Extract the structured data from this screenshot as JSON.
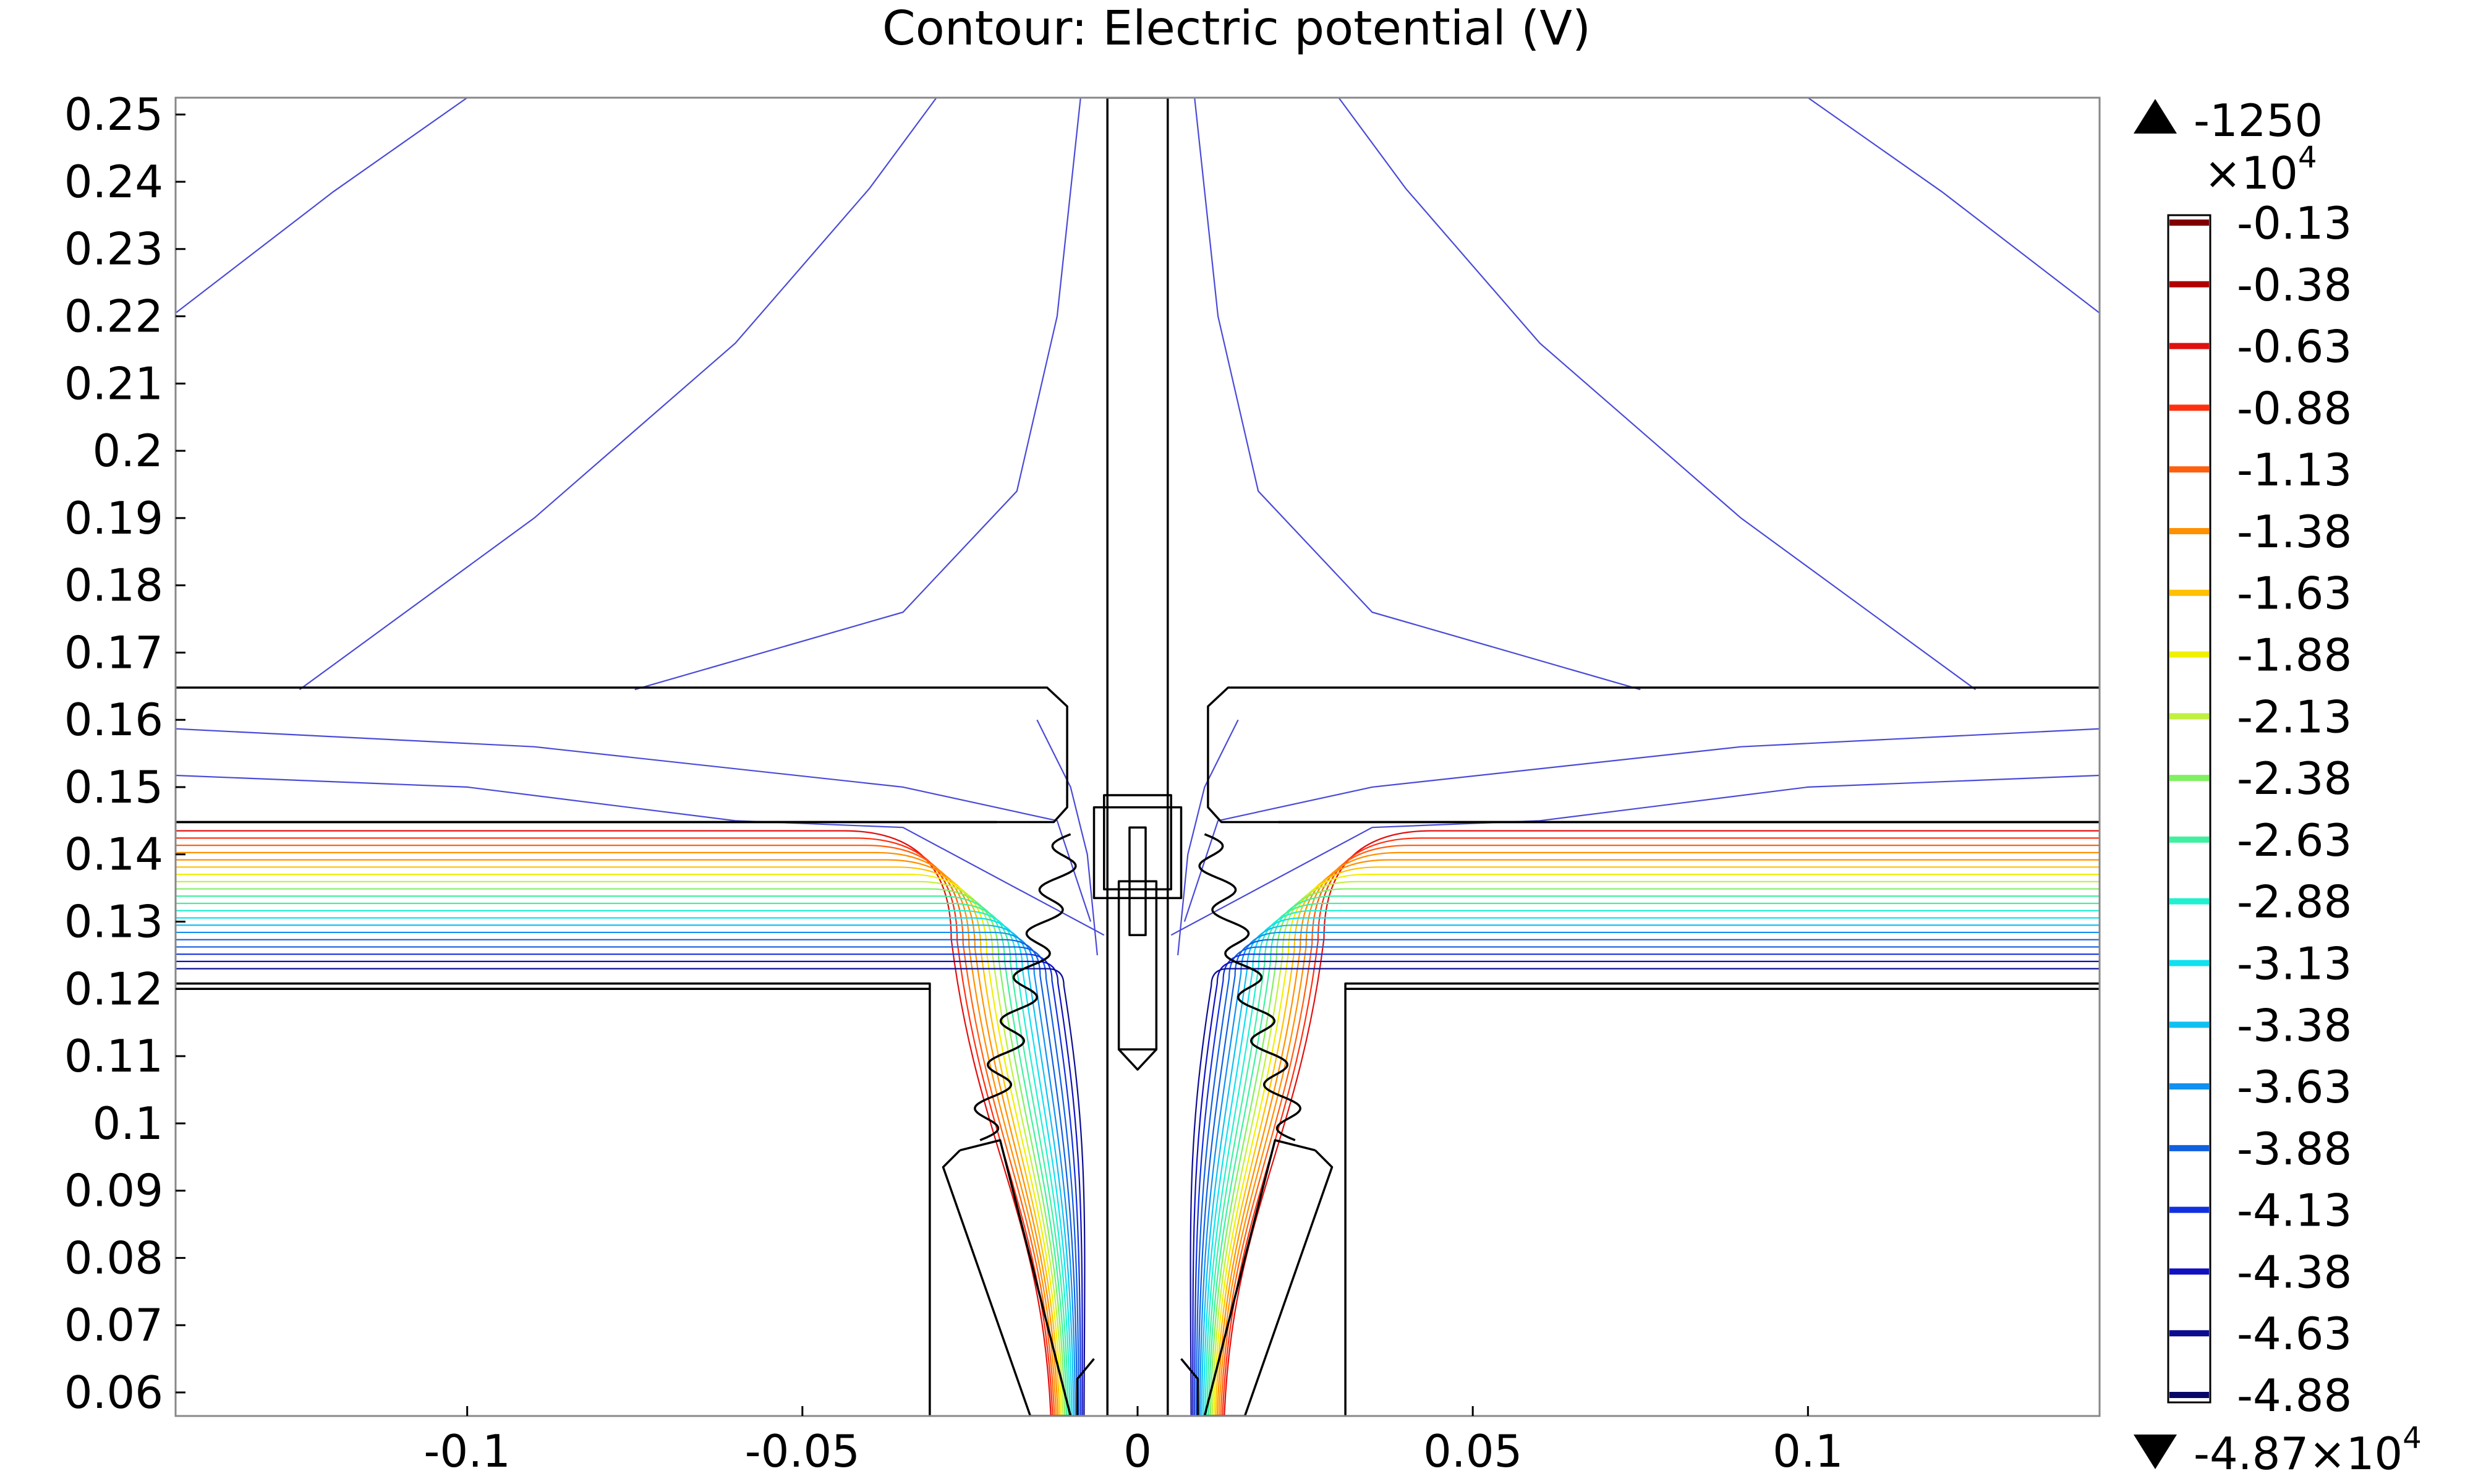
{
  "chart_data": {
    "type": "contour",
    "title": "Contour: Electric potential (V)",
    "xlabel": "",
    "ylabel": "",
    "xlim": [
      -0.1435,
      0.1435
    ],
    "ylim": [
      0.0565,
      0.2525
    ],
    "x_ticks": [
      "-0.1",
      "-0.05",
      "0",
      "0.05",
      "0.1"
    ],
    "x_tick_values": [
      -0.1,
      -0.05,
      0,
      0.05,
      0.1
    ],
    "y_ticks": [
      "0.25",
      "0.24",
      "0.23",
      "0.22",
      "0.21",
      "0.2",
      "0.19",
      "0.18",
      "0.17",
      "0.16",
      "0.15",
      "0.14",
      "0.13",
      "0.12",
      "0.11",
      "0.1",
      "0.09",
      "0.08",
      "0.07",
      "0.06"
    ],
    "y_tick_values": [
      0.25,
      0.24,
      0.23,
      0.22,
      0.21,
      0.2,
      0.19,
      0.18,
      0.17,
      0.16,
      0.15,
      0.14,
      0.13,
      0.12,
      0.11,
      0.1,
      0.09,
      0.08,
      0.07,
      0.06
    ],
    "legend": {
      "max_label": "-1250",
      "scale_label": "×10",
      "scale_exponent": "4",
      "min_label": "-4.87×10",
      "min_exponent": "4",
      "levels": [
        "-0.13",
        "-0.38",
        "-0.63",
        "-0.88",
        "-1.13",
        "-1.38",
        "-1.63",
        "-1.88",
        "-2.13",
        "-2.38",
        "-2.63",
        "-2.88",
        "-3.13",
        "-3.38",
        "-3.63",
        "-3.88",
        "-4.13",
        "-4.38",
        "-4.63",
        "-4.88"
      ],
      "colors": [
        "#800000",
        "#b00000",
        "#e01010",
        "#ff3010",
        "#ff6010",
        "#ff9000",
        "#ffc000",
        "#f0f000",
        "#c0f040",
        "#80f060",
        "#40f0a0",
        "#20f0d0",
        "#10e0f0",
        "#10c0f0",
        "#1090f0",
        "#1060e0",
        "#1030e0",
        "#1010c0",
        "#0c0c90",
        "#080868"
      ],
      "placement": "right"
    },
    "grid": false
  }
}
